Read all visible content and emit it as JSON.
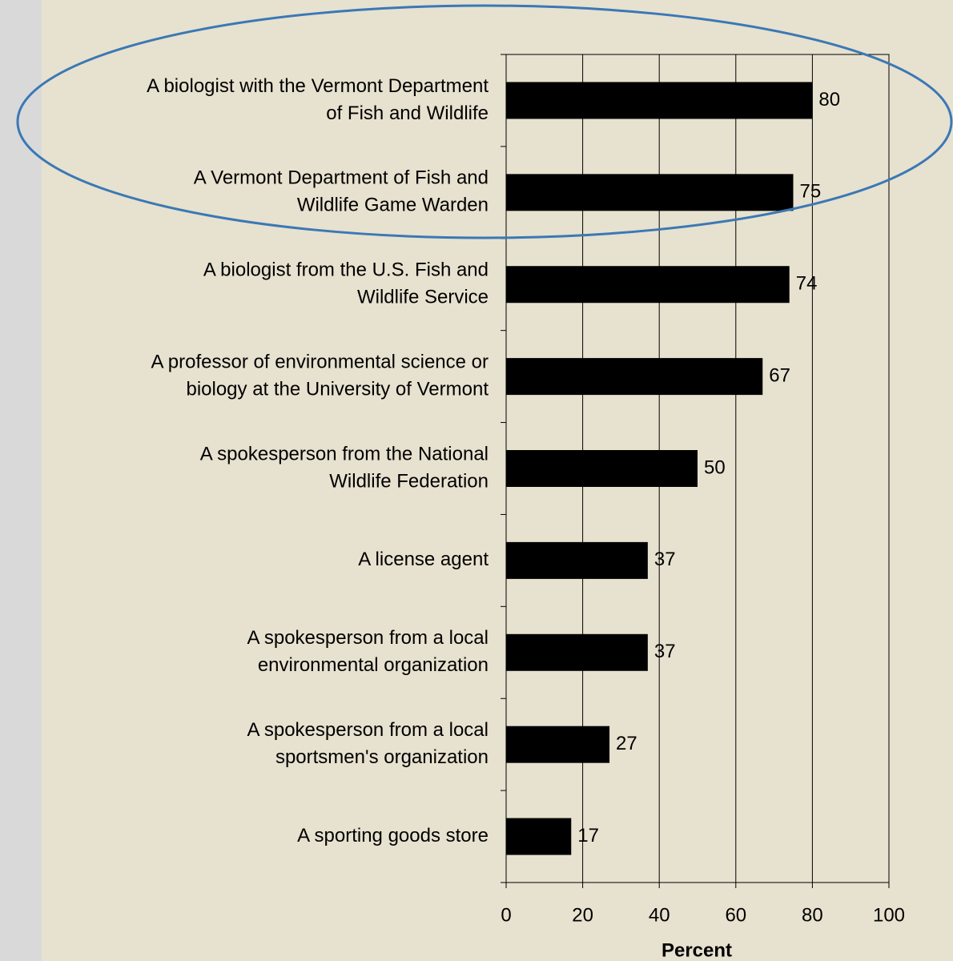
{
  "chart_data": {
    "type": "bar",
    "orientation": "horizontal",
    "categories": [
      [
        "A biologist with the Vermont Department",
        "of Fish and Wildlife"
      ],
      [
        "A Vermont Department of Fish and",
        "Wildlife Game Warden"
      ],
      [
        "A biologist from the U.S. Fish and",
        "Wildlife Service"
      ],
      [
        "A professor of environmental science or",
        "biology at the University of Vermont"
      ],
      [
        "A spokesperson from the National",
        "Wildlife Federation"
      ],
      [
        "A license agent"
      ],
      [
        "A spokesperson from a local",
        "environmental organization"
      ],
      [
        "A spokesperson from a local",
        "sportsmen's organization"
      ],
      [
        "A sporting goods store"
      ]
    ],
    "values": [
      80,
      75,
      74,
      67,
      50,
      37,
      37,
      27,
      17
    ],
    "color": "#000000",
    "x_label": "Percent",
    "xlim": [
      0,
      100
    ],
    "xticks": [
      0,
      20,
      40,
      60,
      80,
      100
    ],
    "grid": true
  }
}
